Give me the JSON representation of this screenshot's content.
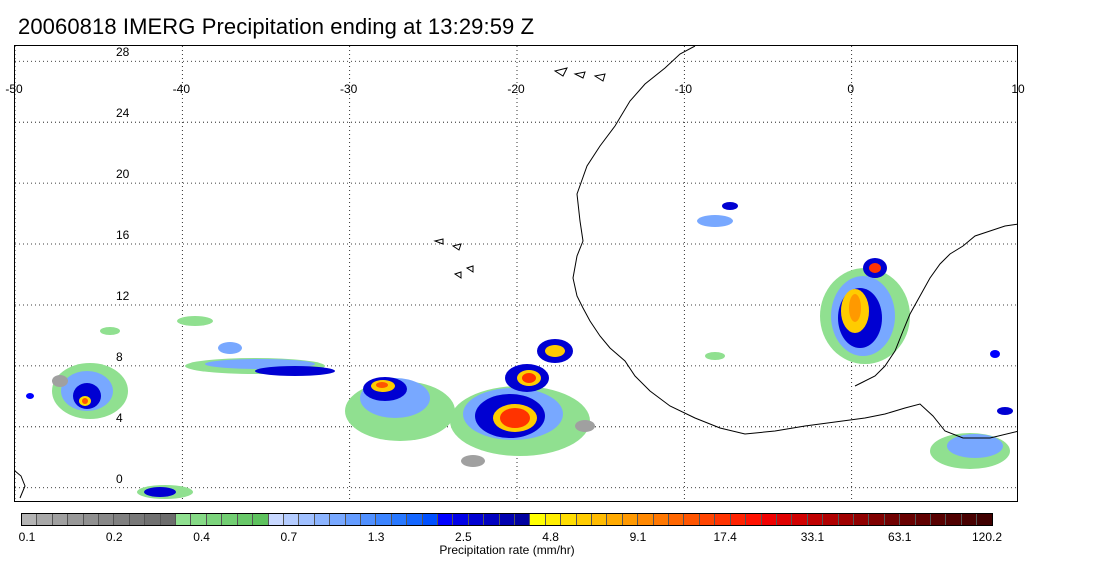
{
  "title": "20060818 IMERG Precipitation ending at 13:29:59 Z",
  "map": {
    "lon_range": [
      -50,
      10
    ],
    "lat_range": [
      -1,
      29
    ],
    "lon_labels": [
      "-50",
      "-40",
      "-30",
      "-20",
      "-10",
      "0",
      "10"
    ],
    "lat_labels": [
      "28",
      "24",
      "20",
      "16",
      "12",
      "8",
      "4",
      "0"
    ],
    "gridlines": "dotted",
    "coastline_color": "#000000"
  },
  "colorbar": {
    "label": "Precipitation rate (mm/hr)",
    "tick_labels": [
      "0.1",
      "0.2",
      "0.4",
      "0.7",
      "1.3",
      "2.5",
      "4.8",
      "9.1",
      "17.4",
      "33.1",
      "63.1",
      "120.2"
    ],
    "colors": [
      "#b4b4b4",
      "#a8a8a8",
      "#a0a0a0",
      "#989898",
      "#909090",
      "#888888",
      "#808080",
      "#787878",
      "#707070",
      "#6c6c6c",
      "#90e090",
      "#86da86",
      "#7cd47c",
      "#72ce72",
      "#68c868",
      "#5ec25e",
      "#c8d8ff",
      "#b4ccff",
      "#a0c0ff",
      "#8cb4ff",
      "#78a8ff",
      "#649cff",
      "#5090ff",
      "#3c84ff",
      "#2878ff",
      "#1466ff",
      "#0050ff",
      "#0000ff",
      "#0000e6",
      "#0000d2",
      "#0000c0",
      "#0000b0",
      "#0000a0",
      "#ffff00",
      "#ffee00",
      "#ffdd00",
      "#ffcc00",
      "#ffbb00",
      "#ffaa00",
      "#ff9900",
      "#ff8800",
      "#ff7700",
      "#ff6600",
      "#ff5500",
      "#ff4400",
      "#ff3300",
      "#ff2200",
      "#ff1100",
      "#f00000",
      "#e00000",
      "#d00000",
      "#c00000",
      "#b00000",
      "#a00000",
      "#900000",
      "#800000",
      "#700000",
      "#680000",
      "#600000",
      "#580000",
      "#500000",
      "#480000",
      "#400000"
    ]
  }
}
